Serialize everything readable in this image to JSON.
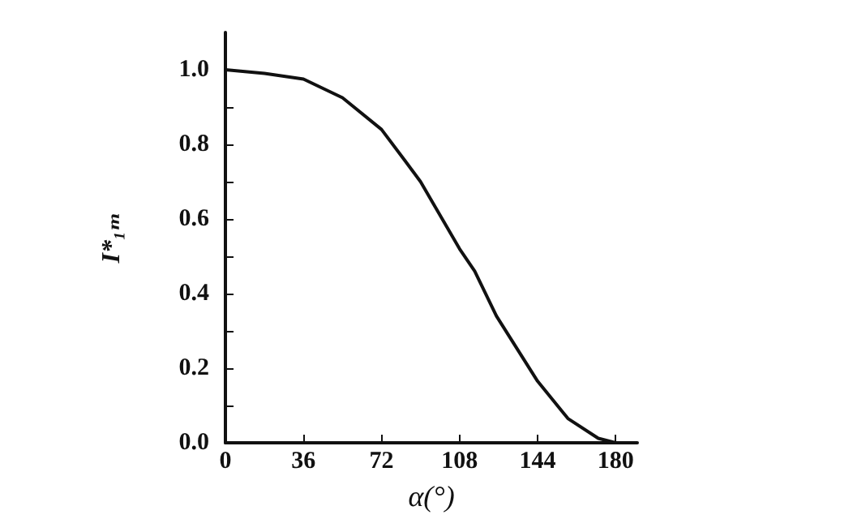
{
  "chart_data": {
    "type": "line",
    "xlabel": "α(°)",
    "ylabel": "I*₁ₘ",
    "series": [
      {
        "color": "#111111",
        "x": [
          0,
          18,
          36,
          54,
          72,
          83,
          90,
          103,
          108,
          115,
          125,
          144,
          158,
          172,
          180
        ],
        "values": [
          1.0,
          0.99,
          0.975,
          0.925,
          0.84,
          0.755,
          0.7,
          0.57,
          0.52,
          0.46,
          0.34,
          0.165,
          0.065,
          0.012,
          0
        ]
      }
    ],
    "xlim": [
      0,
      190
    ],
    "xticks": [
      0,
      36,
      72,
      108,
      144,
      180
    ],
    "ylim": [
      0,
      1.1
    ],
    "yticks": [
      {
        "value": 0,
        "label": "0.0"
      },
      {
        "value": 0.1,
        "label": null
      },
      {
        "value": 0.2,
        "label": "0.2"
      },
      {
        "value": 0.3,
        "label": null
      },
      {
        "value": 0.4,
        "label": "0.4"
      },
      {
        "value": 0.5,
        "label": null
      },
      {
        "value": 0.6,
        "label": "0.6"
      },
      {
        "value": 0.7,
        "label": null
      },
      {
        "value": 0.8,
        "label": "0.8"
      },
      {
        "value": 0.9,
        "label": null
      },
      {
        "value": 1.0,
        "label": "1.0"
      }
    ],
    "grid": false,
    "marker": "none",
    "line_style": "solid"
  }
}
